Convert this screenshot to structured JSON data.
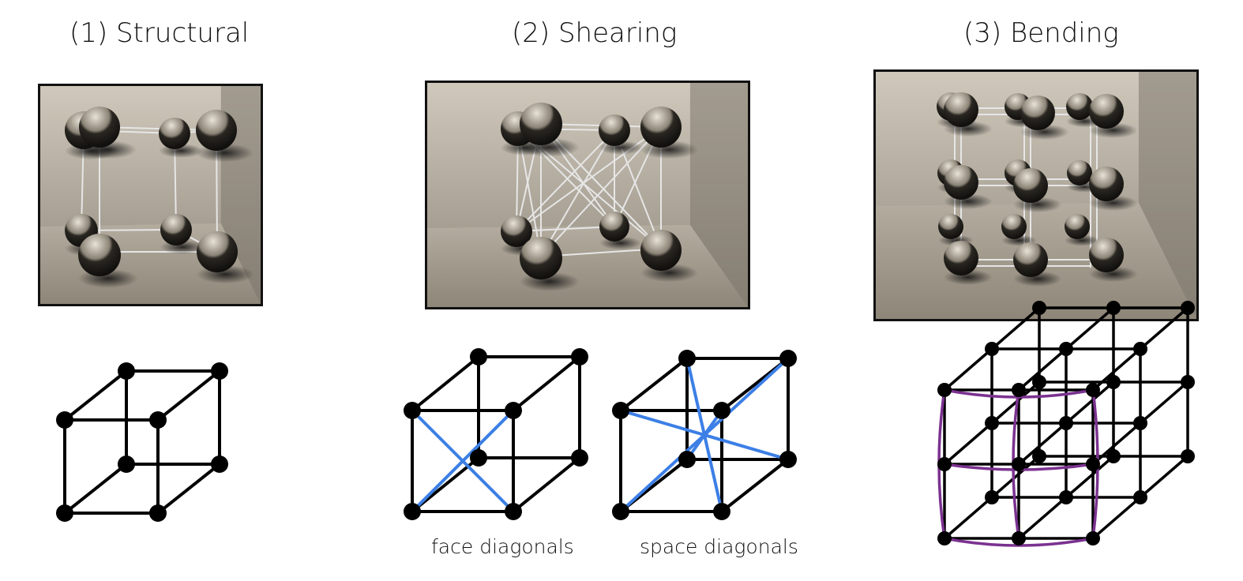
{
  "panels": [
    {
      "title": "(1) Structural",
      "render_alt": "structural springs render",
      "diagram_alt": "structural springs diagram"
    },
    {
      "title": "(2) Shearing",
      "render_alt": "shearing springs render",
      "diagram_alt": "shearing springs diagrams"
    },
    {
      "title": "(3) Bending",
      "render_alt": "bending springs render",
      "diagram_alt": "bending springs diagram"
    }
  ],
  "captions": {
    "face": "face diagonals",
    "space": "space diagonals"
  },
  "colors": {
    "edge": "#000000",
    "shear": "#3c7fe6",
    "bend": "#7b3290",
    "wall": "#b9b2a6",
    "floor": "#aca496",
    "sphere": "#1b1915",
    "spring": "#e6e6e6"
  }
}
